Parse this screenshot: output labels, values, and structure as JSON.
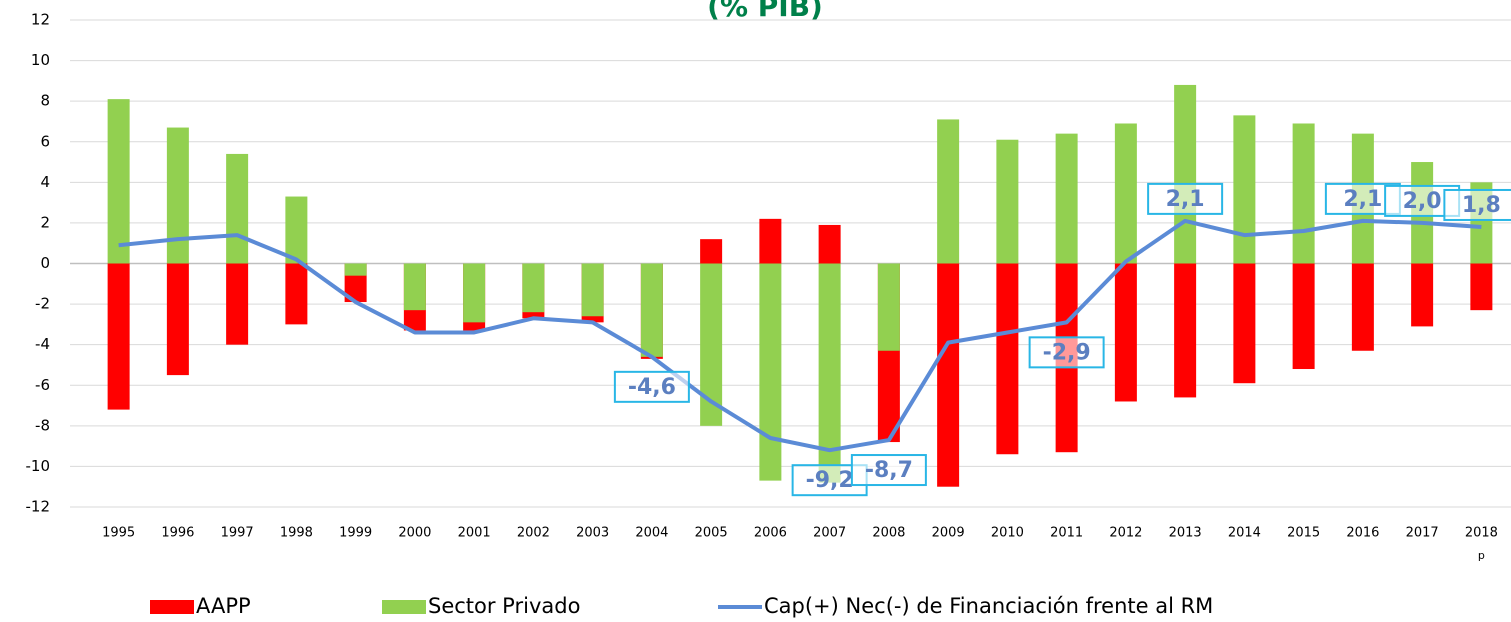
{
  "chart_data": {
    "type": "bar-line",
    "title": "(% PIB)",
    "categories": [
      "1995",
      "1996",
      "1997",
      "1998",
      "1999",
      "2000",
      "2001",
      "2002",
      "2003",
      "2004",
      "2005",
      "2006",
      "2007",
      "2008",
      "2009",
      "2010",
      "2011",
      "2012",
      "2013",
      "2014",
      "2015",
      "2016",
      "2017",
      "2018"
    ],
    "category_note": "p",
    "series": [
      {
        "name": "AAPP",
        "color": "#ff0000",
        "type": "bar",
        "values": [
          -7.2,
          -5.5,
          -4.0,
          -3.0,
          -1.9,
          -3.3,
          -3.3,
          -2.7,
          -2.9,
          -4.7,
          1.2,
          2.2,
          1.9,
          -8.8,
          -11.0,
          -9.4,
          -9.3,
          -6.8,
          -6.6,
          -5.9,
          -5.2,
          -4.3,
          -3.1,
          -2.3
        ]
      },
      {
        "name": "Sector Privado",
        "color": "#92d050",
        "type": "bar",
        "values": [
          8.1,
          6.7,
          5.4,
          3.3,
          -0.6,
          -2.3,
          -2.9,
          -2.4,
          -2.6,
          -4.6,
          -8.0,
          -10.7,
          -10.8,
          -4.3,
          7.1,
          6.1,
          6.4,
          6.9,
          8.8,
          7.3,
          6.9,
          6.4,
          5.0,
          4.0
        ]
      },
      {
        "name": "Cap(+) Nec(-) de Financiación frente al RM",
        "color": "#5b8bd6",
        "type": "line",
        "values": [
          0.9,
          1.2,
          1.4,
          0.2,
          -1.9,
          -3.4,
          -3.4,
          -2.7,
          -2.9,
          -4.6,
          -6.8,
          -8.6,
          -9.2,
          -8.7,
          -3.9,
          -3.4,
          -2.9,
          0.1,
          2.1,
          1.4,
          1.6,
          2.1,
          2.0,
          1.8
        ],
        "value_labels": [
          null,
          null,
          null,
          null,
          null,
          null,
          null,
          null,
          null,
          "-4,6",
          null,
          null,
          "-9,2",
          "-8,7",
          null,
          null,
          "-2,9",
          null,
          "2,1",
          null,
          null,
          "2,1",
          "2,0",
          "1,8"
        ]
      }
    ],
    "ylim": [
      -12,
      12
    ],
    "yticks": [
      -12,
      -10,
      -8,
      -6,
      -4,
      -2,
      0,
      2,
      4,
      6,
      8,
      10,
      12
    ],
    "grid": true,
    "legend": "bottom"
  }
}
